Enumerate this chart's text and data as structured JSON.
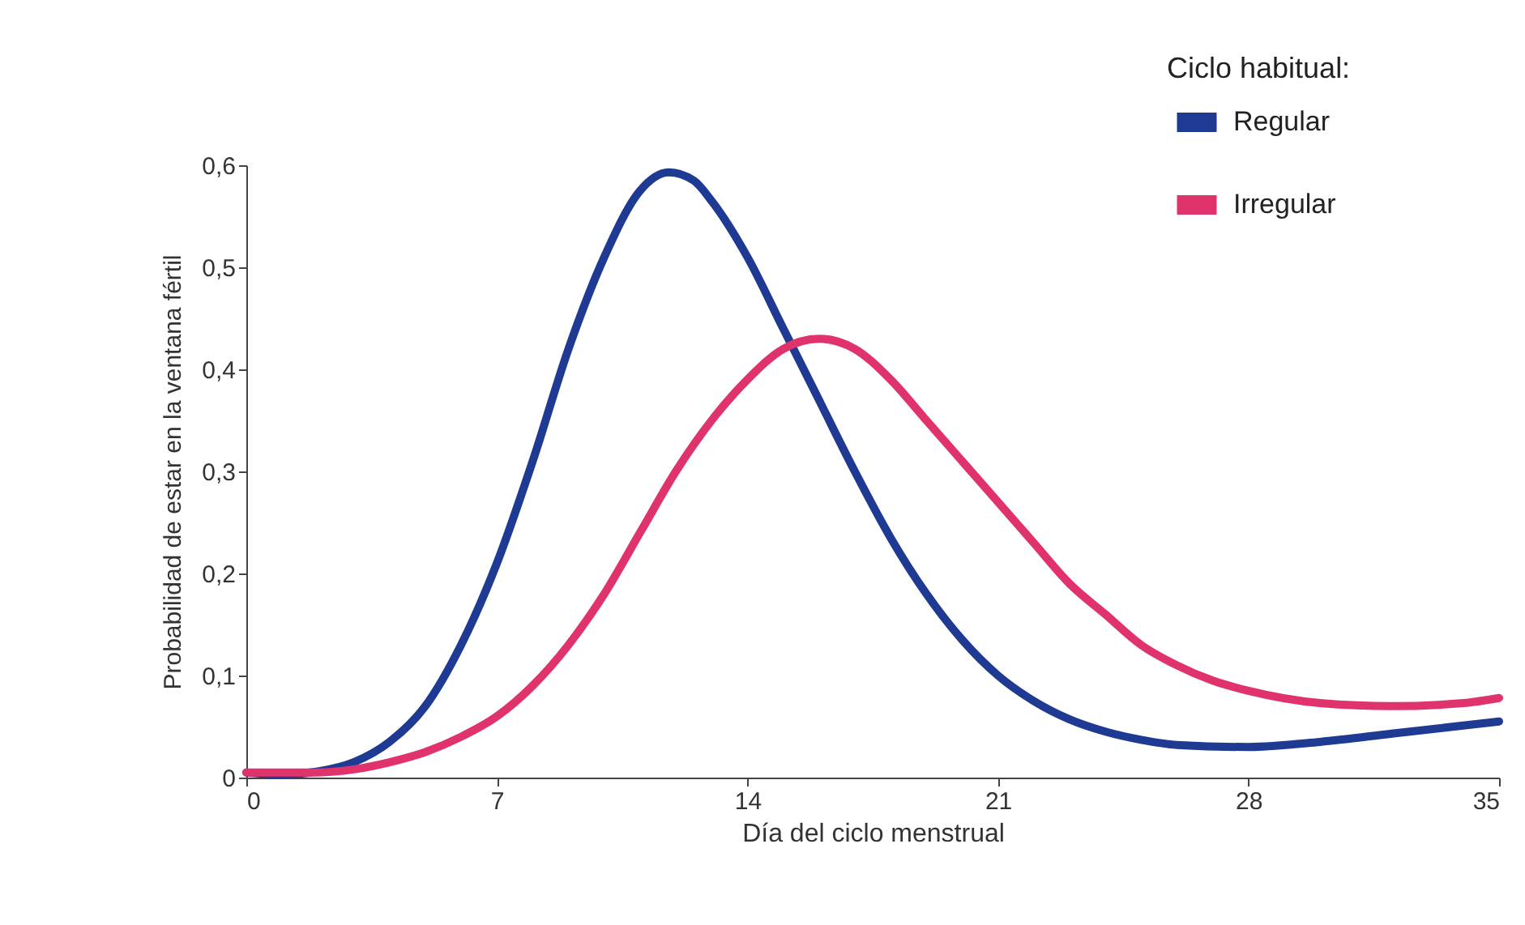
{
  "chart_data": {
    "type": "line",
    "xlabel": "Día del ciclo menstrual",
    "ylabel": "Probabilidad de estar en la ventana fértil",
    "legend_title": "Ciclo habitual:",
    "legend": "top right",
    "marker": "none",
    "line_style": "solid",
    "grid": false,
    "xlim": [
      0,
      35
    ],
    "xticks": [
      0,
      7,
      14,
      21,
      28,
      35
    ],
    "ylim": [
      0,
      0.6
    ],
    "yticks": [
      {
        "value": 0,
        "label": "0"
      },
      {
        "value": 0.1,
        "label": "0,1"
      },
      {
        "value": 0.2,
        "label": "0,2"
      },
      {
        "value": 0.3,
        "label": "0,3"
      },
      {
        "value": 0.4,
        "label": "0,4"
      },
      {
        "value": 0.5,
        "label": "0,5"
      },
      {
        "value": 0.6,
        "label": "0,6"
      }
    ],
    "series": [
      {
        "name": "Regular",
        "color": "#1f3a93",
        "x": [
          0,
          1,
          2,
          3,
          4,
          5,
          6,
          7,
          8,
          9,
          10,
          11,
          11.8,
          12.5,
          13,
          14,
          15,
          16,
          17,
          18,
          19,
          20,
          21,
          22,
          23,
          24,
          25,
          26,
          28,
          30,
          32,
          35
        ],
        "values": [
          0.005,
          0.003,
          0.006,
          0.015,
          0.035,
          0.07,
          0.13,
          0.21,
          0.31,
          0.42,
          0.51,
          0.575,
          0.593,
          0.585,
          0.565,
          0.51,
          0.44,
          0.37,
          0.3,
          0.235,
          0.18,
          0.135,
          0.1,
          0.075,
          0.057,
          0.045,
          0.037,
          0.032,
          0.03,
          0.035,
          0.043,
          0.055
        ]
      },
      {
        "name": "Irregular",
        "color": "#e0336b",
        "x": [
          0,
          2,
          3,
          4,
          5,
          6,
          7,
          8,
          9,
          10,
          11,
          12,
          13,
          14,
          15,
          16,
          17,
          18,
          19,
          20,
          21,
          22,
          23,
          24,
          25,
          26,
          27,
          28,
          30,
          32,
          34,
          35
        ],
        "values": [
          0.005,
          0.005,
          0.008,
          0.015,
          0.025,
          0.04,
          0.06,
          0.09,
          0.13,
          0.18,
          0.24,
          0.3,
          0.35,
          0.39,
          0.42,
          0.43,
          0.42,
          0.39,
          0.35,
          0.31,
          0.27,
          0.23,
          0.19,
          0.16,
          0.13,
          0.11,
          0.095,
          0.085,
          0.073,
          0.07,
          0.073,
          0.078
        ]
      }
    ]
  }
}
